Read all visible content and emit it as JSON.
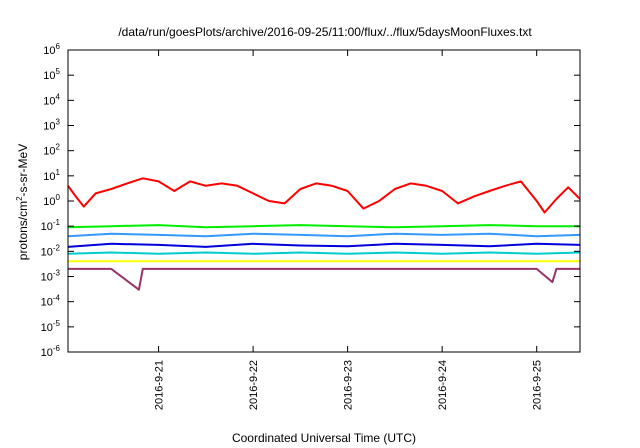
{
  "chart_data": {
    "type": "line",
    "title": "/data/run/goesPlots/archive/2016-09-25/11:00/flux/../flux/5daysMoonFluxes.txt",
    "xlabel": "Coordinated Universal Time (UTC)",
    "ylabel": {
      "pre": "protons/cm",
      "sup": "2",
      "post": "-s-sr-MeV"
    },
    "yscale": "log",
    "ylim": [
      1e-06,
      1000000.0
    ],
    "y_ticks": [
      {
        "base": "10",
        "exp": "-6",
        "value": 1e-06
      },
      {
        "base": "10",
        "exp": "-5",
        "value": 1e-05
      },
      {
        "base": "10",
        "exp": "-4",
        "value": 0.0001
      },
      {
        "base": "10",
        "exp": "-3",
        "value": 0.001
      },
      {
        "base": "10",
        "exp": "-2",
        "value": 0.01
      },
      {
        "base": "10",
        "exp": "-1",
        "value": 0.1
      },
      {
        "base": "10",
        "exp": "0",
        "value": 1.0
      },
      {
        "base": "10",
        "exp": "1",
        "value": 10.0
      },
      {
        "base": "10",
        "exp": "2",
        "value": 100.0
      },
      {
        "base": "10",
        "exp": "3",
        "value": 1000.0
      },
      {
        "base": "10",
        "exp": "4",
        "value": 10000.0
      },
      {
        "base": "10",
        "exp": "5",
        "value": 100000.0
      },
      {
        "base": "10",
        "exp": "6",
        "value": 1000000.0
      }
    ],
    "x_range": [
      "2016-09-20 01:00",
      "2016-09-25 11:00"
    ],
    "x_ticks": [
      "2016-9-21",
      "2016-9-22",
      "2016-9-23",
      "2016-9-24",
      "2016-9-25"
    ],
    "x_tick_dates": [
      "2016-09-21",
      "2016-09-22",
      "2016-09-23",
      "2016-09-24",
      "2016-09-25"
    ],
    "grid": false,
    "legend": "none",
    "series": [
      {
        "color": "#ff0000",
        "x": [
          "2016-09-20 01:00",
          "2016-09-20 03:00",
          "2016-09-20 05:00",
          "2016-09-20 08:00",
          "2016-09-20 12:00",
          "2016-09-20 16:00",
          "2016-09-20 20:00",
          "2016-09-21 00:00",
          "2016-09-21 04:00",
          "2016-09-21 08:00",
          "2016-09-21 12:00",
          "2016-09-21 16:00",
          "2016-09-21 20:00",
          "2016-09-22 00:00",
          "2016-09-22 04:00",
          "2016-09-22 08:00",
          "2016-09-22 12:00",
          "2016-09-22 16:00",
          "2016-09-22 20:00",
          "2016-09-23 00:00",
          "2016-09-23 04:00",
          "2016-09-23 08:00",
          "2016-09-23 12:00",
          "2016-09-23 16:00",
          "2016-09-23 20:00",
          "2016-09-24 00:00",
          "2016-09-24 04:00",
          "2016-09-24 08:00",
          "2016-09-24 12:00",
          "2016-09-24 16:00",
          "2016-09-24 20:00",
          "2016-09-25 00:00",
          "2016-09-25 02:00",
          "2016-09-25 05:00",
          "2016-09-25 08:00",
          "2016-09-25 11:00"
        ],
        "values": [
          4,
          1.5,
          0.6,
          2,
          3,
          5,
          8,
          6,
          2.5,
          6,
          4,
          5,
          4,
          2,
          1,
          0.8,
          3,
          5,
          4,
          2.5,
          0.5,
          1,
          3,
          5,
          4,
          2.5,
          0.8,
          1.5,
          2.5,
          4,
          6,
          1,
          0.35,
          1.2,
          3.5,
          1.2
        ]
      },
      {
        "color": "#00ee00",
        "x": [
          "2016-09-20 01:00",
          "2016-09-20 12:00",
          "2016-09-21 00:00",
          "2016-09-21 12:00",
          "2016-09-22 00:00",
          "2016-09-22 12:00",
          "2016-09-23 00:00",
          "2016-09-23 12:00",
          "2016-09-24 00:00",
          "2016-09-24 12:00",
          "2016-09-25 00:00",
          "2016-09-25 11:00"
        ],
        "values": [
          0.09,
          0.1,
          0.11,
          0.09,
          0.1,
          0.11,
          0.1,
          0.09,
          0.1,
          0.11,
          0.1,
          0.1
        ]
      },
      {
        "color": "#3399ff",
        "x": [
          "2016-09-20 01:00",
          "2016-09-20 12:00",
          "2016-09-21 00:00",
          "2016-09-21 12:00",
          "2016-09-22 00:00",
          "2016-09-22 12:00",
          "2016-09-23 00:00",
          "2016-09-23 12:00",
          "2016-09-24 00:00",
          "2016-09-24 12:00",
          "2016-09-25 00:00",
          "2016-09-25 11:00"
        ],
        "values": [
          0.04,
          0.05,
          0.045,
          0.04,
          0.05,
          0.045,
          0.04,
          0.05,
          0.045,
          0.05,
          0.04,
          0.045
        ]
      },
      {
        "color": "#0000dd",
        "x": [
          "2016-09-20 01:00",
          "2016-09-20 12:00",
          "2016-09-21 00:00",
          "2016-09-21 12:00",
          "2016-09-22 00:00",
          "2016-09-22 12:00",
          "2016-09-23 00:00",
          "2016-09-23 12:00",
          "2016-09-24 00:00",
          "2016-09-24 12:00",
          "2016-09-25 00:00",
          "2016-09-25 11:00"
        ],
        "values": [
          0.015,
          0.02,
          0.018,
          0.015,
          0.02,
          0.017,
          0.016,
          0.02,
          0.018,
          0.016,
          0.02,
          0.018
        ]
      },
      {
        "color": "#00cccc",
        "x": [
          "2016-09-20 01:00",
          "2016-09-20 12:00",
          "2016-09-21 00:00",
          "2016-09-21 12:00",
          "2016-09-22 00:00",
          "2016-09-22 12:00",
          "2016-09-23 00:00",
          "2016-09-23 12:00",
          "2016-09-24 00:00",
          "2016-09-24 12:00",
          "2016-09-25 00:00",
          "2016-09-25 11:00"
        ],
        "values": [
          0.008,
          0.009,
          0.008,
          0.009,
          0.008,
          0.009,
          0.008,
          0.009,
          0.008,
          0.009,
          0.008,
          0.009
        ]
      },
      {
        "color": "#ffff00",
        "x": [
          "2016-09-20 01:00",
          "2016-09-21 00:00",
          "2016-09-22 00:00",
          "2016-09-23 00:00",
          "2016-09-24 00:00",
          "2016-09-25 00:00",
          "2016-09-25 11:00"
        ],
        "values": [
          0.004,
          0.004,
          0.004,
          0.004,
          0.004,
          0.004,
          0.004
        ]
      },
      {
        "color": "#993366",
        "x": [
          "2016-09-20 01:00",
          "2016-09-20 12:00",
          "2016-09-20 19:00",
          "2016-09-20 20:00",
          "2016-09-21 00:00",
          "2016-09-21 12:00",
          "2016-09-22 00:00",
          "2016-09-22 12:00",
          "2016-09-23 00:00",
          "2016-09-23 12:00",
          "2016-09-24 00:00",
          "2016-09-24 12:00",
          "2016-09-25 00:00",
          "2016-09-25 04:00",
          "2016-09-25 05:00",
          "2016-09-25 11:00"
        ],
        "values": [
          0.002,
          0.002,
          0.0003,
          0.002,
          0.002,
          0.002,
          0.002,
          0.002,
          0.002,
          0.002,
          0.002,
          0.002,
          0.002,
          0.0006,
          0.002,
          0.002
        ]
      }
    ]
  }
}
